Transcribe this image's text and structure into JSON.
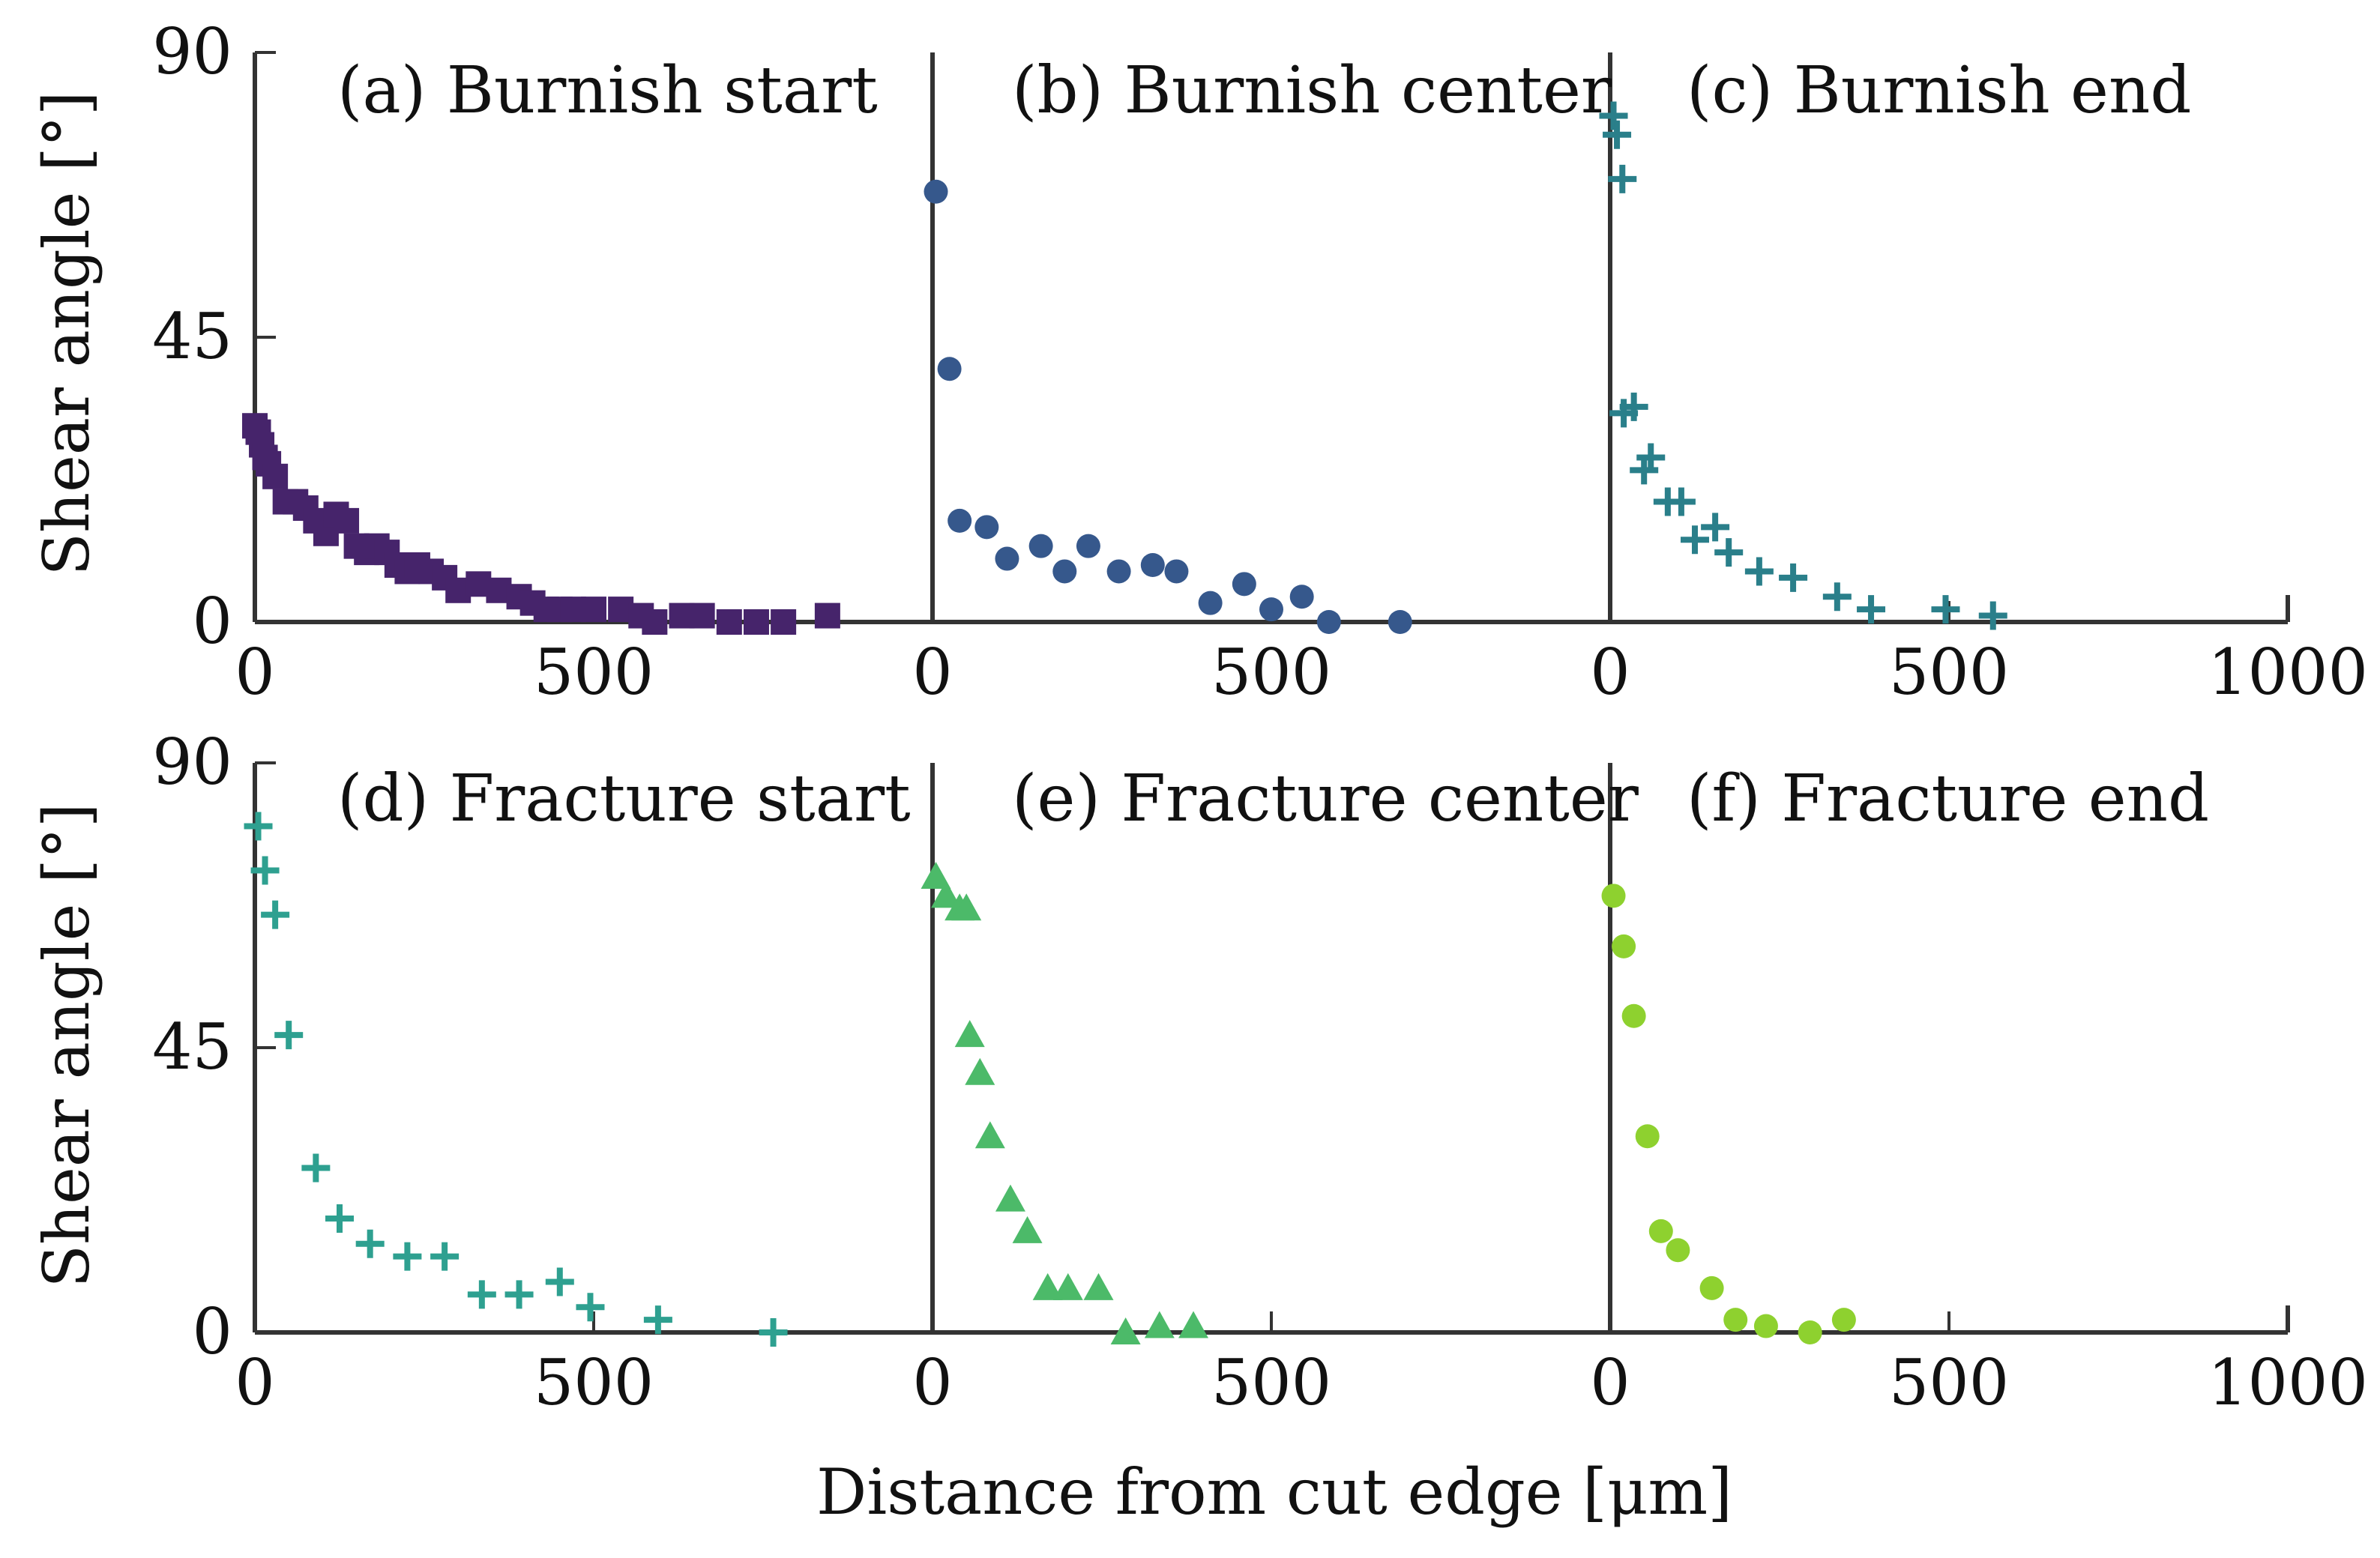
{
  "figure": {
    "xlabel": "Distance from cut edge [μm]",
    "ylabel": "Shear angle [°]"
  },
  "chart_data": [
    {
      "type": "scatter",
      "row": "top",
      "x_ticks": [
        "0",
        "500",
        "0",
        "500",
        "0",
        "500",
        "1000"
      ],
      "y_ticks": [
        "0",
        "45",
        "90"
      ],
      "ylim": [
        0,
        90
      ],
      "panel_xlim": [
        0,
        1000
      ],
      "panels": [
        {
          "title": "(a) Burnish start",
          "marker": "square",
          "color": "#46246b",
          "points": [
            [
              0,
              31
            ],
            [
              5,
              30
            ],
            [
              10,
              28
            ],
            [
              15,
              26
            ],
            [
              20,
              25
            ],
            [
              30,
              23
            ],
            [
              45,
              19
            ],
            [
              60,
              19
            ],
            [
              75,
              18
            ],
            [
              90,
              16
            ],
            [
              105,
              14
            ],
            [
              120,
              17
            ],
            [
              135,
              16
            ],
            [
              150,
              12
            ],
            [
              165,
              11
            ],
            [
              180,
              12
            ],
            [
              195,
              11
            ],
            [
              210,
              9
            ],
            [
              225,
              8
            ],
            [
              240,
              9
            ],
            [
              260,
              8
            ],
            [
              280,
              7
            ],
            [
              300,
              5
            ],
            [
              330,
              6
            ],
            [
              360,
              5
            ],
            [
              390,
              4
            ],
            [
              410,
              3
            ],
            [
              430,
              2
            ],
            [
              450,
              2
            ],
            [
              470,
              2
            ],
            [
              500,
              2
            ],
            [
              540,
              2
            ],
            [
              570,
              1
            ],
            [
              590,
              0
            ],
            [
              630,
              1
            ],
            [
              660,
              1
            ],
            [
              700,
              0
            ],
            [
              740,
              0
            ],
            [
              780,
              0
            ],
            [
              845,
              1
            ]
          ]
        },
        {
          "title": "(b) Burnish center",
          "marker": "circle",
          "color": "#36588c",
          "points": [
            [
              5,
              68
            ],
            [
              25,
              40
            ],
            [
              40,
              16
            ],
            [
              80,
              15
            ],
            [
              110,
              10
            ],
            [
              160,
              12
            ],
            [
              195,
              8
            ],
            [
              230,
              12
            ],
            [
              275,
              8
            ],
            [
              325,
              9
            ],
            [
              360,
              8
            ],
            [
              410,
              3
            ],
            [
              460,
              6
            ],
            [
              500,
              2
            ],
            [
              545,
              4
            ],
            [
              585,
              0
            ],
            [
              690,
              0
            ]
          ]
        },
        {
          "title": "(c) Burnish end",
          "marker": "plus",
          "color": "#2a7f8a",
          "points": [
            [
              5,
              80
            ],
            [
              10,
              77
            ],
            [
              18,
              70
            ],
            [
              20,
              33
            ],
            [
              35,
              34
            ],
            [
              50,
              24
            ],
            [
              60,
              26
            ],
            [
              85,
              19
            ],
            [
              105,
              19
            ],
            [
              125,
              13
            ],
            [
              155,
              15
            ],
            [
              175,
              11
            ],
            [
              220,
              8
            ],
            [
              270,
              7
            ],
            [
              335,
              4
            ],
            [
              385,
              2
            ],
            [
              495,
              2
            ],
            [
              565,
              1
            ]
          ]
        }
      ]
    },
    {
      "type": "scatter",
      "row": "bottom",
      "x_ticks": [
        "0",
        "500",
        "0",
        "500",
        "0",
        "500",
        "1000"
      ],
      "y_ticks": [
        "0",
        "45",
        "90"
      ],
      "ylim": [
        0,
        90
      ],
      "panel_xlim": [
        0,
        1000
      ],
      "panels": [
        {
          "title": "(d) Fracture start",
          "marker": "plus",
          "color": "#2ea090",
          "points": [
            [
              5,
              80
            ],
            [
              15,
              73
            ],
            [
              30,
              66
            ],
            [
              50,
              47
            ],
            [
              90,
              26
            ],
            [
              125,
              18
            ],
            [
              170,
              14
            ],
            [
              225,
              12
            ],
            [
              280,
              12
            ],
            [
              335,
              6
            ],
            [
              390,
              6
            ],
            [
              450,
              8
            ],
            [
              495,
              4
            ],
            [
              595,
              2
            ],
            [
              765,
              0
            ]
          ]
        },
        {
          "title": "(e) Fracture center",
          "marker": "triangle",
          "color": "#4cba69",
          "points": [
            [
              5,
              72
            ],
            [
              20,
              69
            ],
            [
              40,
              67
            ],
            [
              50,
              67
            ],
            [
              55,
              47
            ],
            [
              70,
              41
            ],
            [
              85,
              31
            ],
            [
              115,
              21
            ],
            [
              140,
              16
            ],
            [
              170,
              7
            ],
            [
              200,
              7
            ],
            [
              245,
              7
            ],
            [
              285,
              0
            ],
            [
              335,
              1
            ],
            [
              385,
              1
            ]
          ]
        },
        {
          "title": "(f) Fracture end",
          "marker": "circle",
          "color": "#8ed12f",
          "points": [
            [
              5,
              69
            ],
            [
              20,
              61
            ],
            [
              35,
              50
            ],
            [
              55,
              31
            ],
            [
              75,
              16
            ],
            [
              100,
              13
            ],
            [
              150,
              7
            ],
            [
              185,
              2
            ],
            [
              230,
              1
            ],
            [
              295,
              0
            ],
            [
              345,
              2
            ]
          ]
        }
      ]
    }
  ]
}
